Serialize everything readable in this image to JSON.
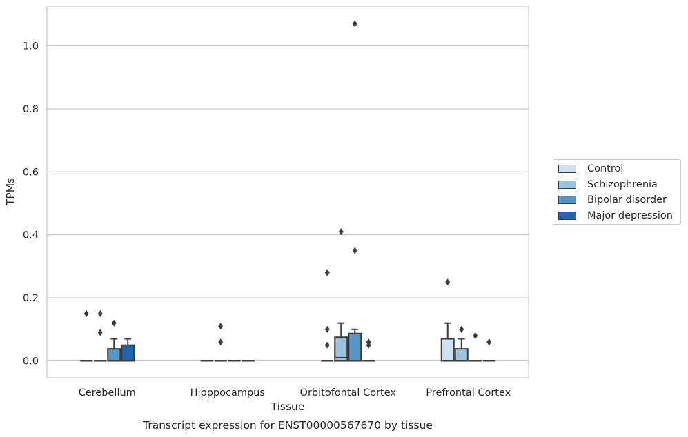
{
  "chart_data": {
    "type": "box",
    "xlabel": "Tissue",
    "ylabel": "TPMs",
    "caption": "Transcript expression for ENST00000567670 by tissue",
    "categories": [
      "Cerebellum",
      "Hipppocampus",
      "Orbitofontal Cortex",
      "Prefrontal Cortex"
    ],
    "ylim": [
      -0.05,
      1.13
    ],
    "yticks": [
      0.0,
      0.2,
      0.4,
      0.6,
      0.8,
      1.0
    ],
    "ytick_labels": [
      "0.0",
      "0.2",
      "0.4",
      "0.6",
      "0.8",
      "1.0"
    ],
    "grid": "horizontal",
    "legend_position": "right",
    "series": [
      {
        "name": "Control",
        "color": "#cfe1f1",
        "boxes": [
          {
            "category": "Cerebellum",
            "q1": 0.0,
            "median": 0.0,
            "q3": 0.0,
            "whisker_low": 0.0,
            "whisker_high": 0.0,
            "outliers": [
              0.15
            ]
          },
          {
            "category": "Hipppocampus",
            "q1": 0.0,
            "median": 0.0,
            "q3": 0.0,
            "whisker_low": 0.0,
            "whisker_high": 0.0,
            "outliers": []
          },
          {
            "category": "Orbitofontal Cortex",
            "q1": 0.0,
            "median": 0.0,
            "q3": 0.0,
            "whisker_low": 0.0,
            "whisker_high": 0.0,
            "outliers": [
              0.28,
              0.1,
              0.05
            ]
          },
          {
            "category": "Prefrontal Cortex",
            "q1": 0.0,
            "median": 0.0,
            "q3": 0.07,
            "whisker_low": 0.0,
            "whisker_high": 0.12,
            "outliers": [
              0.25
            ]
          }
        ]
      },
      {
        "name": "Schizophrenia",
        "color": "#9cc3dd",
        "boxes": [
          {
            "category": "Cerebellum",
            "q1": 0.0,
            "median": 0.0,
            "q3": 0.0,
            "whisker_low": 0.0,
            "whisker_high": 0.0,
            "outliers": [
              0.15,
              0.09
            ]
          },
          {
            "category": "Hipppocampus",
            "q1": 0.0,
            "median": 0.0,
            "q3": 0.0,
            "whisker_low": 0.0,
            "whisker_high": 0.0,
            "outliers": [
              0.11,
              0.06
            ]
          },
          {
            "category": "Orbitofontal Cortex",
            "q1": 0.0,
            "median": 0.01,
            "q3": 0.075,
            "whisker_low": 0.0,
            "whisker_high": 0.12,
            "outliers": [
              0.41
            ]
          },
          {
            "category": "Prefrontal Cortex",
            "q1": 0.0,
            "median": 0.0,
            "q3": 0.038,
            "whisker_low": 0.0,
            "whisker_high": 0.07,
            "outliers": [
              0.1
            ]
          }
        ]
      },
      {
        "name": "Bipolar disorder",
        "color": "#5496c6",
        "boxes": [
          {
            "category": "Cerebellum",
            "q1": 0.0,
            "median": 0.0,
            "q3": 0.038,
            "whisker_low": 0.0,
            "whisker_high": 0.07,
            "outliers": [
              0.12
            ]
          },
          {
            "category": "Hipppocampus",
            "q1": 0.0,
            "median": 0.0,
            "q3": 0.0,
            "whisker_low": 0.0,
            "whisker_high": 0.0,
            "outliers": []
          },
          {
            "category": "Orbitofontal Cortex",
            "q1": 0.0,
            "median": 0.0,
            "q3": 0.087,
            "whisker_low": 0.0,
            "whisker_high": 0.1,
            "outliers": [
              1.07,
              0.35
            ]
          },
          {
            "category": "Prefrontal Cortex",
            "q1": 0.0,
            "median": 0.0,
            "q3": 0.0,
            "whisker_low": 0.0,
            "whisker_high": 0.0,
            "outliers": [
              0.08
            ]
          }
        ]
      },
      {
        "name": "Major depression",
        "color": "#2165aa",
        "boxes": [
          {
            "category": "Cerebellum",
            "q1": 0.0,
            "median": 0.0,
            "q3": 0.05,
            "whisker_low": 0.0,
            "whisker_high": 0.07,
            "outliers": []
          },
          {
            "category": "Hipppocampus",
            "q1": 0.0,
            "median": 0.0,
            "q3": 0.0,
            "whisker_low": 0.0,
            "whisker_high": 0.0,
            "outliers": []
          },
          {
            "category": "Orbitofontal Cortex",
            "q1": 0.0,
            "median": 0.0,
            "q3": 0.0,
            "whisker_low": 0.0,
            "whisker_high": 0.0,
            "outliers": [
              0.06,
              0.05
            ]
          },
          {
            "category": "Prefrontal Cortex",
            "q1": 0.0,
            "median": 0.0,
            "q3": 0.0,
            "whisker_low": 0.0,
            "whisker_high": 0.0,
            "outliers": [
              0.06
            ]
          }
        ]
      }
    ]
  }
}
